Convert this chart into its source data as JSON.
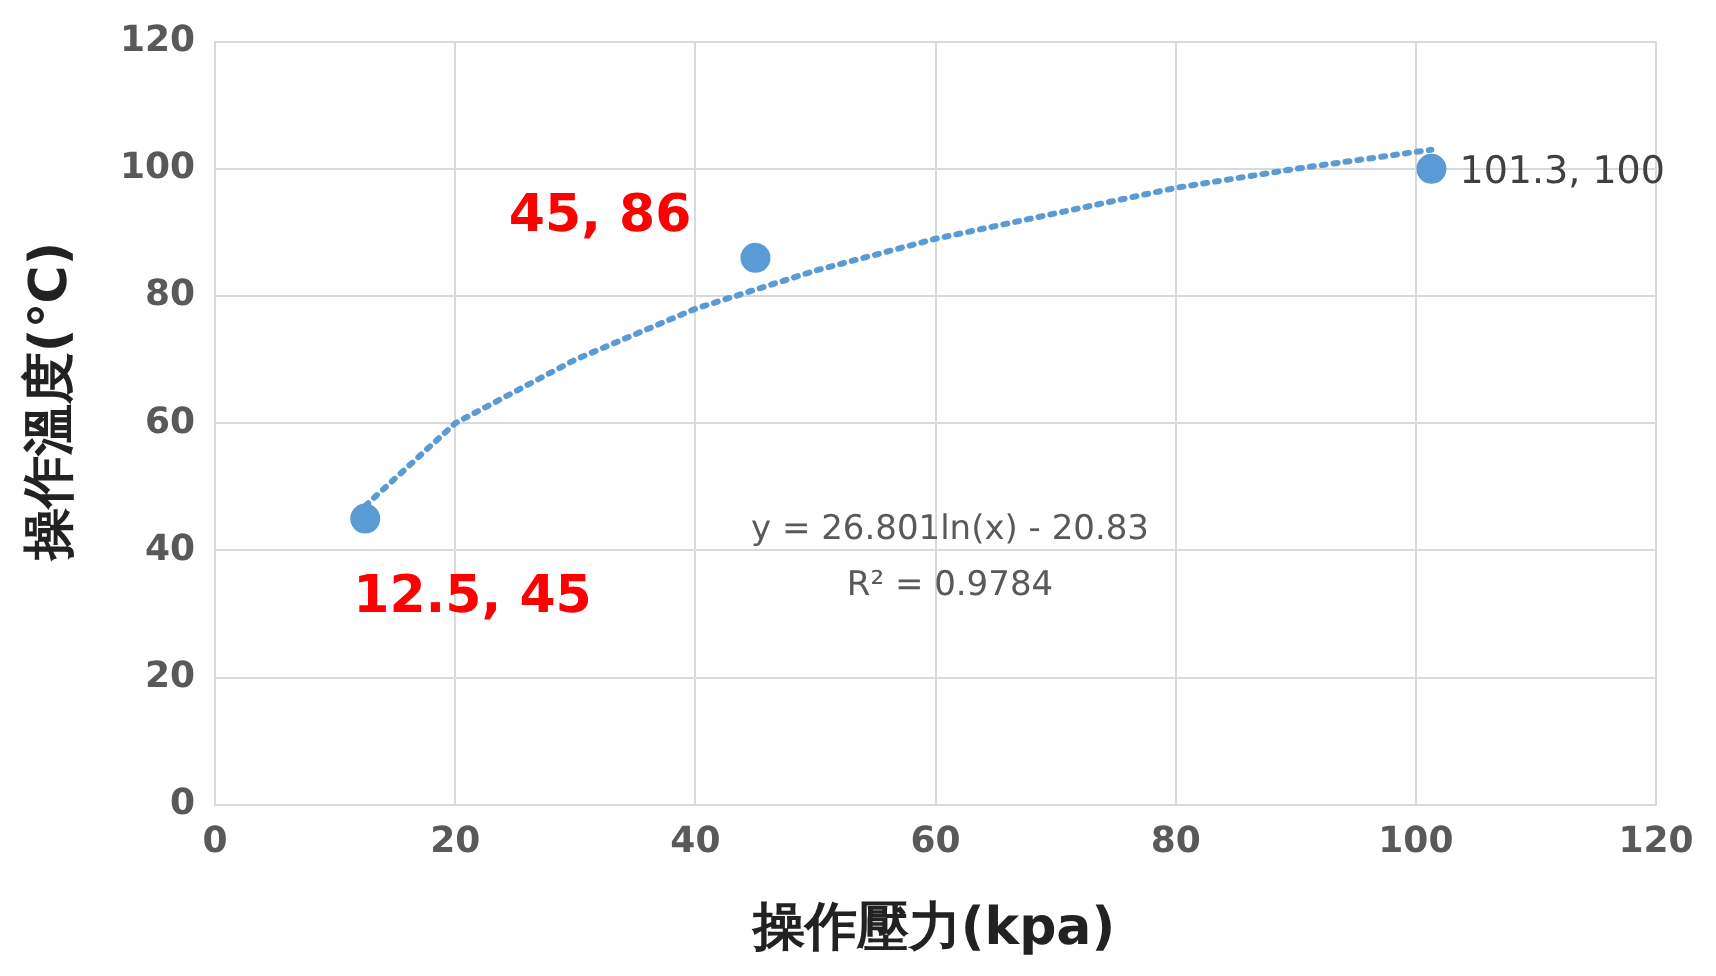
{
  "chart_data": {
    "type": "scatter",
    "xlabel": "操作壓力(kpa)",
    "ylabel": "操作溫度(℃)",
    "xlim": [
      0,
      120
    ],
    "xticks": [
      0,
      20,
      40,
      60,
      80,
      100,
      120
    ],
    "ylim": [
      0,
      120
    ],
    "yticks": [
      0,
      20,
      40,
      60,
      80,
      100,
      120
    ],
    "grid": true,
    "legend": false,
    "marker": "circle",
    "series": [
      {
        "color": "#5b9bd5",
        "x": [
          12.5,
          45,
          101.3
        ],
        "values": [
          45,
          86,
          100
        ],
        "value_labels": [
          null,
          null,
          "101.3, 100"
        ]
      },
      {
        "type": "line",
        "color": "#5b9bd5",
        "line_style": "dotted",
        "marker": "none",
        "x": [
          12.5,
          20,
          30,
          40,
          50,
          60,
          70,
          80,
          90,
          101.3
        ],
        "values": [
          47,
          60,
          70,
          78,
          84,
          89,
          93,
          97,
          100,
          103
        ]
      }
    ],
    "annotations": [
      {
        "text": "12.5, 45",
        "x": 12.5,
        "y": 45
      },
      {
        "text": "45, 86",
        "x": 45,
        "y": 86
      },
      "y = 26.801ln(x) - 20.83",
      "R² = 0.9784"
    ]
  }
}
